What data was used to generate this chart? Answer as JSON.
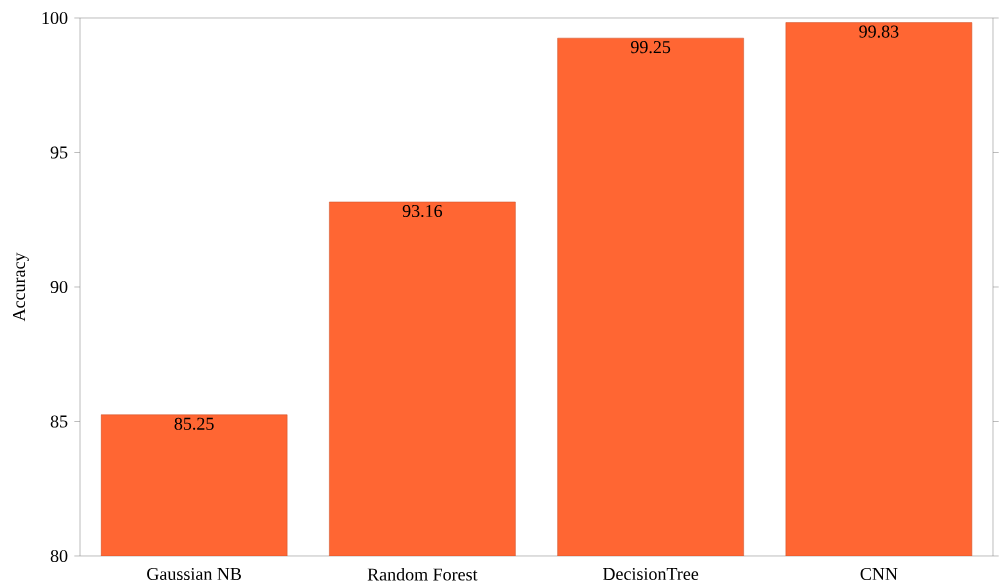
{
  "chart_data": {
    "type": "bar",
    "ylabel": "Accuracy",
    "categories": [
      "Gaussian NB",
      "Random Forest",
      "DecisionTree",
      "CNN"
    ],
    "values": [
      85.25,
      93.16,
      99.25,
      99.83
    ],
    "color": "#ff6633",
    "ylim": [
      80,
      100
    ],
    "yticks": [
      80,
      85,
      90,
      95,
      100
    ],
    "data_labels": true
  }
}
